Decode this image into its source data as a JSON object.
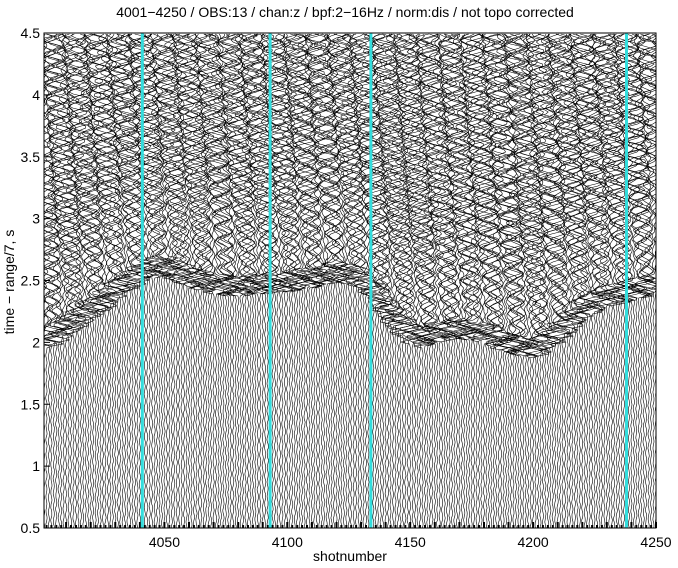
{
  "chart_data": {
    "type": "line",
    "title": "4001−4250 / OBS:13 / chan:z / bpf:2−16Hz / norm:dis / not topo corrected",
    "xlabel": "shotnumber",
    "ylabel": "time − range/7, s",
    "xlim": [
      4001,
      4250
    ],
    "ylim": [
      0.5,
      4.5
    ],
    "x_ticks": [
      "4050",
      "4100",
      "4150",
      "4200",
      "4250"
    ],
    "x_tick_values": [
      4050,
      4100,
      4150,
      4200,
      4250
    ],
    "y_ticks": [
      "0.5",
      "1",
      "1.5",
      "2",
      "2.5",
      "3",
      "3.5",
      "4",
      "4.5"
    ],
    "y_tick_values": [
      0.5,
      1,
      1.5,
      2,
      2.5,
      3,
      3.5,
      4,
      4.5
    ],
    "highlighted_traces": [
      4041,
      4093,
      4134,
      4238
    ],
    "highlight_color": "#33dddd",
    "trace_color": "#000000",
    "first_arrival": {
      "shot": [
        4001,
        4010,
        4020,
        4030,
        4040,
        4050,
        4060,
        4070,
        4080,
        4090,
        4100,
        4110,
        4120,
        4130,
        4140,
        4150,
        4155,
        4160,
        4170,
        4180,
        4190,
        4200,
        4210,
        4220,
        4230,
        4240,
        4250
      ],
      "time": [
        1.95,
        2.05,
        2.2,
        2.35,
        2.5,
        2.55,
        2.45,
        2.4,
        2.38,
        2.4,
        2.42,
        2.45,
        2.5,
        2.45,
        2.2,
        2.0,
        1.97,
        2.0,
        2.05,
        2.0,
        1.92,
        1.88,
        2.0,
        2.2,
        2.3,
        2.35,
        2.4
      ]
    }
  }
}
